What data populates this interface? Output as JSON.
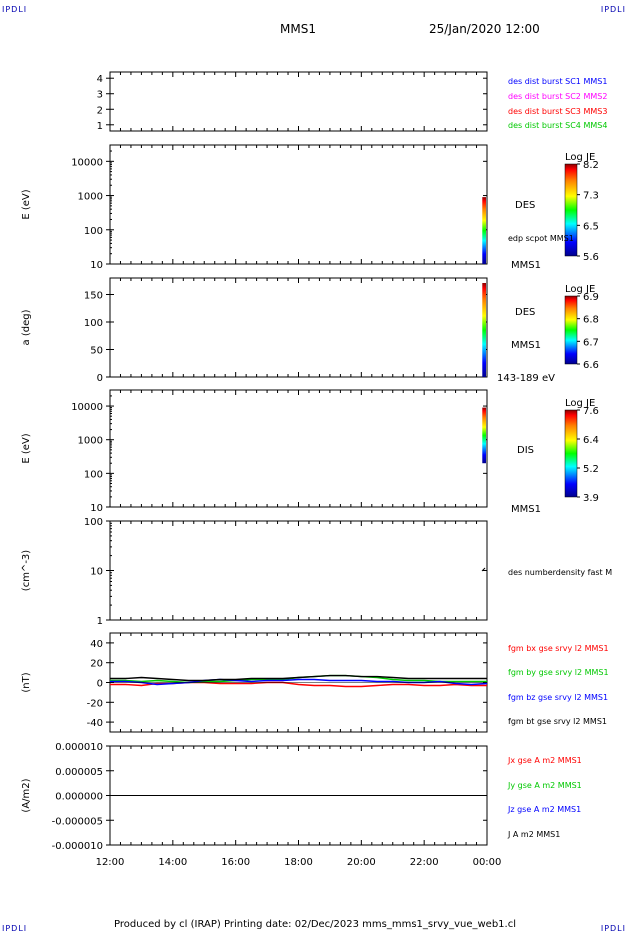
{
  "corner_label": "IPDLI",
  "header": {
    "spacecraft": "MMS1",
    "datetime": "25/Jan/2020 12:00"
  },
  "footer": "Produced by cl (IRAP)   Printing date: 02/Dec/2023   mms_mms1_srvy_vue_web1.cl",
  "colors": {
    "blue": "#0000ff",
    "magenta": "#ff00ff",
    "red": "#ff0000",
    "green": "#00c800",
    "black": "#000000"
  },
  "chart_data": [
    {
      "type": "line",
      "ylabel": "",
      "ylim": [
        0.6,
        4.4
      ],
      "yticks": [
        "1",
        "2",
        "3",
        "4"
      ],
      "legend": [
        {
          "text": "des dist burst SC1 MMS1",
          "color": "#0000ff"
        },
        {
          "text": "des dist burst SC2 MMS2",
          "color": "#ff00ff"
        },
        {
          "text": "des dist burst SC3 MMS3",
          "color": "#ff0000"
        },
        {
          "text": "des dist burst SC4 MMS4",
          "color": "#00c800"
        }
      ]
    },
    {
      "type": "heatmap",
      "ylabel": "E (eV)",
      "scale": "log",
      "ylim": [
        10,
        30000
      ],
      "yticks": [
        "10",
        "100",
        "1000",
        "10000"
      ],
      "side_labels": [
        "DES",
        "edp scpot MMS1",
        "MMS1"
      ],
      "colorbar": {
        "title": "Log JE",
        "ticks": [
          "8.2",
          "7.3",
          "6.5",
          "5.6"
        ]
      }
    },
    {
      "type": "heatmap",
      "ylabel": "a (deg)",
      "ylim": [
        0,
        180
      ],
      "yticks": [
        "0",
        "50",
        "100",
        "150"
      ],
      "side_labels": [
        "DES",
        "MMS1",
        "143-189 eV"
      ],
      "colorbar": {
        "title": "Log JE",
        "ticks": [
          "6.9",
          "6.8",
          "6.7",
          "6.6"
        ]
      }
    },
    {
      "type": "heatmap",
      "ylabel": "E (eV)",
      "scale": "log",
      "ylim": [
        10,
        30000
      ],
      "yticks": [
        "10",
        "100",
        "1000",
        "10000"
      ],
      "side_labels": [
        "DIS",
        "MMS1"
      ],
      "colorbar": {
        "title": "Log JE",
        "ticks": [
          "7.6",
          "6.4",
          "5.2",
          "3.9"
        ]
      }
    },
    {
      "type": "line",
      "ylabel": "(cm^-3)",
      "scale": "log",
      "ylim": [
        1,
        100
      ],
      "yticks": [
        "1",
        "10",
        "100"
      ],
      "legend": [
        {
          "text": "des numberdensity fast M",
          "color": "#000000"
        }
      ]
    },
    {
      "type": "line",
      "ylabel": "(nT)",
      "ylim": [
        -50,
        50
      ],
      "yticks": [
        "-40",
        "-20",
        "0",
        "20",
        "40"
      ],
      "legend": [
        {
          "text": "fgm bx gse srvy l2 MMS1",
          "color": "#ff0000"
        },
        {
          "text": "fgm by gse srvy l2 MMS1",
          "color": "#00c800"
        },
        {
          "text": "fgm bz gse srvy l2 MMS1",
          "color": "#0000ff"
        },
        {
          "text": "fgm bt gse srvy l2 MMS1",
          "color": "#000000"
        }
      ],
      "x": [
        0,
        0.5,
        1,
        1.5,
        2,
        2.5,
        3,
        3.5,
        4,
        4.5,
        5,
        5.5,
        6,
        6.5,
        7,
        7.5,
        8,
        8.5,
        9,
        9.5,
        10,
        10.5,
        11,
        11.5,
        12
      ],
      "series": [
        {
          "name": "fgm bx gse srvy l2 MMS1",
          "color": "#ff0000",
          "values": [
            -2,
            -2,
            -3,
            -1,
            -1,
            0,
            0,
            -1,
            -1,
            -1,
            0,
            0,
            -2,
            -3,
            -3,
            -4,
            -4,
            -3,
            -2,
            -2,
            -3,
            -3,
            -2,
            -3,
            -3
          ]
        },
        {
          "name": "fgm by gse srvy l2 MMS1",
          "color": "#00c800",
          "values": [
            2,
            2,
            1,
            2,
            1,
            0,
            1,
            1,
            2,
            3,
            3,
            3,
            5,
            6,
            7,
            7,
            6,
            5,
            3,
            2,
            2,
            1,
            1,
            1,
            1
          ]
        },
        {
          "name": "fgm bz gse srvy l2 MMS1",
          "color": "#0000ff",
          "values": [
            1,
            1,
            0,
            -2,
            -1,
            0,
            2,
            3,
            2,
            1,
            2,
            2,
            3,
            3,
            2,
            2,
            2,
            1,
            1,
            0,
            0,
            1,
            -1,
            -2,
            -1
          ]
        },
        {
          "name": "fgm bt gse srvy l2 MMS1",
          "color": "#000000",
          "values": [
            4,
            4,
            5,
            4,
            3,
            2,
            2,
            3,
            3,
            4,
            4,
            4,
            5,
            6,
            7,
            7,
            6,
            6,
            5,
            4,
            4,
            4,
            4,
            4,
            4
          ]
        }
      ]
    },
    {
      "type": "line",
      "ylabel": "(A/m2)",
      "ylim": [
        -1e-05,
        1e-05
      ],
      "yticks": [
        "-0.000010",
        "-0.000005",
        "0.000000",
        "0.000005",
        "0.000010"
      ],
      "legend": [
        {
          "text": "Jx gse A m2 MMS1",
          "color": "#ff0000"
        },
        {
          "text": "Jy gse A m2 MMS1",
          "color": "#00c800"
        },
        {
          "text": "Jz gse A m2 MMS1",
          "color": "#0000ff"
        },
        {
          "text": "J A m2 MMS1",
          "color": "#000000"
        }
      ]
    }
  ],
  "xaxis": {
    "ticks": [
      "12:00",
      "14:00",
      "16:00",
      "18:00",
      "20:00",
      "22:00",
      "00:00"
    ]
  }
}
